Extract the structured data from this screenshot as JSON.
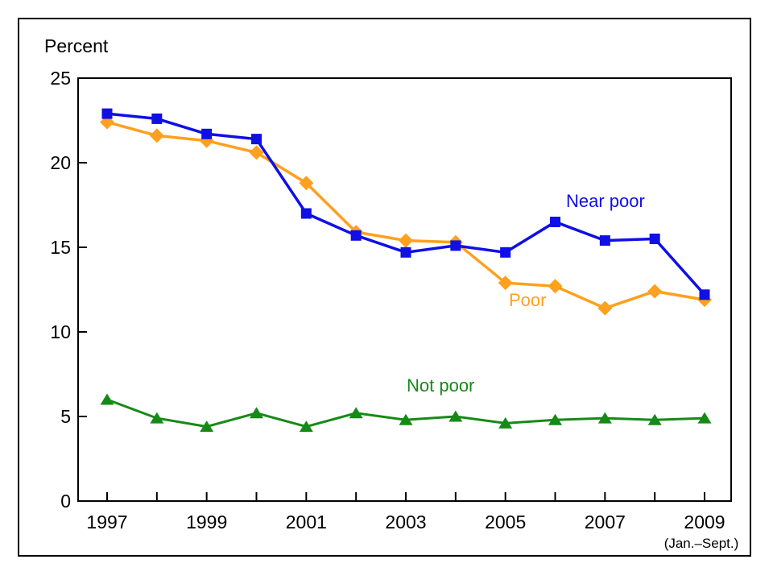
{
  "chart_data": {
    "type": "line",
    "ylabel": "Percent",
    "x": [
      1997,
      1998,
      1999,
      2000,
      2001,
      2002,
      2003,
      2004,
      2005,
      2006,
      2007,
      2008,
      2009
    ],
    "xticks_labeled": [
      "1997",
      "1999",
      "2001",
      "2003",
      "2005",
      "2007",
      "2009"
    ],
    "x_note": "(Jan.–Sept.)",
    "ylim": [
      0,
      25
    ],
    "yticks": [
      0,
      5,
      10,
      15,
      20,
      25
    ],
    "grid": false,
    "legend_position": "inline-labels",
    "colors": {
      "near_poor": "#0f0fe6",
      "poor": "#ffa01e",
      "not_poor": "#168a16",
      "axis": "#000000"
    },
    "series": [
      {
        "name": "Not poor",
        "marker": "triangle",
        "color": "#168a16",
        "values": [
          6.0,
          4.9,
          4.4,
          5.2,
          4.4,
          5.2,
          4.8,
          5.0,
          4.6,
          4.8,
          4.9,
          4.8,
          4.9
        ]
      },
      {
        "name": "Poor",
        "marker": "diamond",
        "color": "#ffa01e",
        "values": [
          22.4,
          21.6,
          21.3,
          20.6,
          18.8,
          15.9,
          15.4,
          15.3,
          12.9,
          12.7,
          11.4,
          12.4,
          11.9
        ]
      },
      {
        "name": "Near poor",
        "marker": "square",
        "color": "#0f0fe6",
        "values": [
          22.9,
          22.6,
          21.7,
          21.4,
          17.0,
          15.7,
          14.7,
          15.1,
          14.7,
          16.5,
          15.4,
          15.5,
          12.2
        ]
      }
    ]
  }
}
